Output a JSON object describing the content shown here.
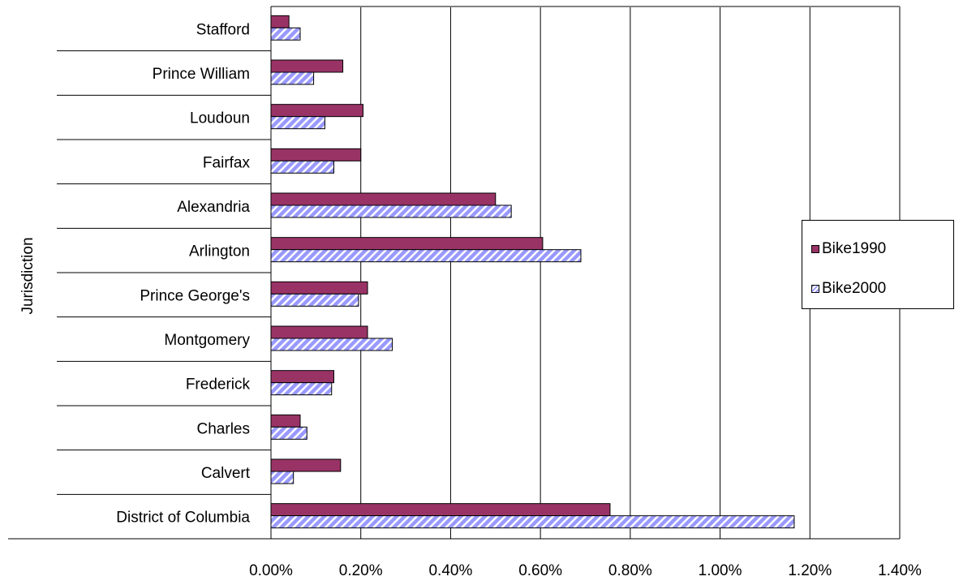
{
  "chart_data": {
    "type": "bar",
    "orientation": "horizontal",
    "ylabel": "Jurisdiction",
    "xlabel": "",
    "xlim": [
      0,
      0.014
    ],
    "x_ticks": [
      "0.00%",
      "0.20%",
      "0.40%",
      "0.60%",
      "0.80%",
      "1.00%",
      "1.20%",
      "1.40%"
    ],
    "categories": [
      "Stafford",
      "Prince William",
      "Loudoun",
      "Fairfax",
      "Alexandria",
      "Arlington",
      "Prince George's",
      "Montgomery",
      "Frederick",
      "Charles",
      "Calvert",
      "District of Columbia"
    ],
    "series": [
      {
        "name": "Bike1990",
        "color": "#993366",
        "pattern": "solid",
        "values": [
          0.0004,
          0.0016,
          0.00205,
          0.002,
          0.005,
          0.00605,
          0.00215,
          0.00215,
          0.0014,
          0.00065,
          0.00155,
          0.00755
        ]
      },
      {
        "name": "Bike2000",
        "color": "#9999ff",
        "pattern": "diagonal-stripes",
        "values": [
          0.00065,
          0.00095,
          0.0012,
          0.0014,
          0.00535,
          0.0069,
          0.00195,
          0.0027,
          0.00135,
          0.0008,
          0.0005,
          0.01165
        ]
      }
    ],
    "grid": true,
    "legend_position": "right"
  }
}
